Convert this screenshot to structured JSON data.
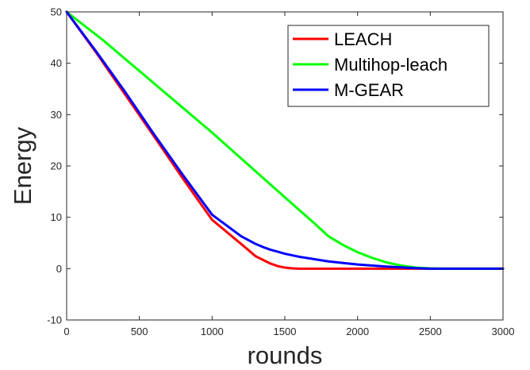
{
  "chart_data": {
    "type": "line",
    "title": "",
    "xlabel": "rounds",
    "ylabel": "Energy",
    "xlim": [
      0,
      3000
    ],
    "ylim": [
      -10,
      50
    ],
    "xticks": [
      0,
      500,
      1000,
      1500,
      2000,
      2500,
      3000
    ],
    "yticks": [
      -10,
      0,
      10,
      20,
      30,
      40,
      50
    ],
    "grid": false,
    "legend_position": "top-right",
    "series": [
      {
        "name": "LEACH",
        "color": "#ff0000",
        "x": [
          0,
          200,
          400,
          600,
          800,
          1000,
          1200,
          1300,
          1400,
          1450,
          1500,
          1550,
          1600,
          1700,
          1800,
          2000,
          2500,
          3000
        ],
        "y": [
          50,
          42.2,
          34.0,
          25.8,
          17.5,
          9.5,
          4.8,
          2.4,
          1.0,
          0.5,
          0.2,
          0.05,
          0,
          0,
          0,
          0,
          0,
          0
        ]
      },
      {
        "name": "Multihop-leach",
        "color": "#00ff00",
        "x": [
          0,
          250,
          500,
          750,
          1000,
          1250,
          1500,
          1600,
          1700,
          1800,
          1900,
          2000,
          2100,
          2200,
          2300,
          2400,
          2500,
          2550,
          2600,
          3000
        ],
        "y": [
          50,
          44.5,
          38.5,
          32.5,
          26.5,
          20.2,
          13.9,
          11.4,
          8.9,
          6.3,
          4.6,
          3.2,
          2.1,
          1.2,
          0.6,
          0.2,
          0.05,
          0,
          0,
          0
        ]
      },
      {
        "name": "M-GEAR",
        "color": "#0000ff",
        "x": [
          0,
          200,
          400,
          600,
          800,
          1000,
          1200,
          1300,
          1350,
          1400,
          1450,
          1500,
          1600,
          1800,
          2000,
          2200,
          2400,
          2500,
          2600,
          3000
        ],
        "y": [
          50,
          42.4,
          34.5,
          26.2,
          18.2,
          10.5,
          6.3,
          4.8,
          4.2,
          3.7,
          3.3,
          2.9,
          2.3,
          1.4,
          0.8,
          0.4,
          0.1,
          0,
          0,
          0
        ]
      }
    ]
  }
}
